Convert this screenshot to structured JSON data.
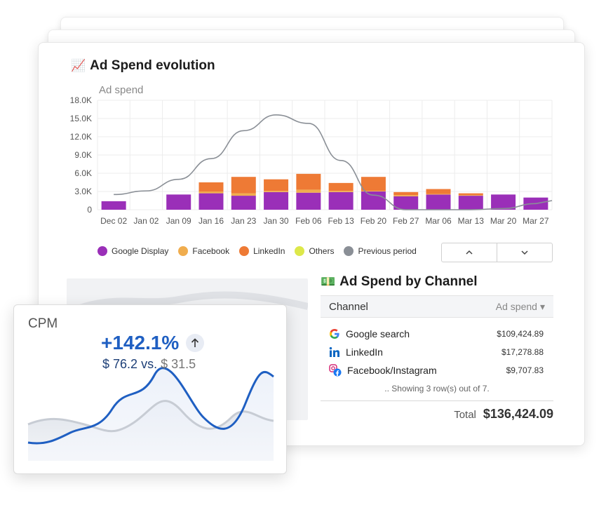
{
  "ad_spend": {
    "emoji": "📈",
    "title": "Ad Spend evolution"
  },
  "chart_data": {
    "type": "bar",
    "ylabel": "Ad spend",
    "ylim": [
      0,
      18000
    ],
    "yticks": [
      "18.0K",
      "15.0K",
      "12.0K",
      "9.0K",
      "6.0K",
      "3.0K",
      "0"
    ],
    "categories": [
      "Dec 02",
      "Jan 02",
      "Jan 09",
      "Jan 16",
      "Jan 23",
      "Jan 30",
      "Feb 06",
      "Feb 13",
      "Feb 20",
      "Feb 27",
      "Mar 06",
      "Mar 13",
      "Mar 20",
      "Mar 27"
    ],
    "stacked": true,
    "series": [
      {
        "name": "Google Display",
        "color": "#9a2fb8",
        "values": [
          1400,
          0,
          2500,
          2700,
          2300,
          2900,
          2800,
          2900,
          3000,
          2200,
          2500,
          2300,
          2500,
          2000
        ]
      },
      {
        "name": "Facebook",
        "color": "#f0ad4e",
        "values": [
          0,
          0,
          0,
          300,
          400,
          200,
          500,
          200,
          100,
          200,
          100,
          100,
          0,
          0
        ]
      },
      {
        "name": "LinkedIn",
        "color": "#ee7a35",
        "values": [
          0,
          0,
          0,
          1500,
          2700,
          1900,
          2600,
          1300,
          2300,
          500,
          800,
          300,
          0,
          0
        ]
      },
      {
        "name": "Others",
        "color": "#dde84a",
        "values": [
          0,
          0,
          0,
          0,
          0,
          0,
          0,
          0,
          0,
          0,
          0,
          0,
          0,
          0
        ]
      },
      {
        "name": "Previous period",
        "type": "line",
        "color": "#8a8f96",
        "values": [
          2500,
          3100,
          5000,
          8400,
          13000,
          15600,
          14200,
          8100,
          2400,
          0,
          0,
          0,
          200,
          1000
        ]
      }
    ],
    "legend": "bottom-left",
    "grid": true
  },
  "pager": {
    "up_icon": "chevron-up-icon",
    "down_icon": "chevron-down-icon"
  },
  "channel": {
    "emoji": "💵",
    "title": "Ad Spend by Channel",
    "col_channel": "Channel",
    "col_spend": "Ad spend",
    "rows": [
      {
        "icon": "google-icon",
        "name": "Google search",
        "value": "$109,424.89"
      },
      {
        "icon": "linkedin-icon",
        "name": "LinkedIn",
        "value": "$17,278.88"
      },
      {
        "icon": "facebook-instagram-icon",
        "name": "Facebook/Instagram",
        "value": "$9,707.83"
      }
    ],
    "footnote": ".. Showing 3 row(s) out of 7.",
    "total_label": "Total",
    "total_value": "$136,424.09"
  },
  "cpm": {
    "title": "CPM",
    "change": "+142.1%",
    "current": "$ 76.2",
    "vs": "vs.",
    "previous": "$ 31.5",
    "line_color": "#1f5fc2"
  }
}
